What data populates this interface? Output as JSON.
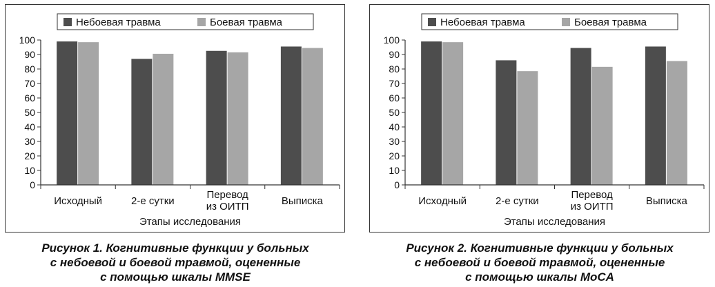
{
  "chart_data": [
    {
      "type": "bar",
      "categories": [
        [
          "Исходный"
        ],
        [
          "2-е сутки"
        ],
        [
          "Перевод",
          "из ОИТП"
        ],
        [
          "Выписка"
        ]
      ],
      "series": [
        {
          "name": "Небоевая травма",
          "values": [
            99,
            87,
            92.5,
            95.5
          ],
          "color": "#4d4d4d"
        },
        {
          "name": "Боевая травма",
          "values": [
            98.5,
            90.5,
            91.5,
            94.5
          ],
          "color": "#a6a6a6"
        }
      ],
      "xlabel": "Этапы исследования",
      "ylabel": "",
      "ylim": [
        0,
        100
      ],
      "yticks": [
        0,
        10,
        20,
        30,
        40,
        50,
        60,
        70,
        80,
        90,
        100
      ],
      "legend": "top",
      "grid": false,
      "caption": [
        "Рисунок 1. Когнитивные функции у больных",
        "с небоевой и боевой травмой, оцененные",
        "с помощью шкалы MMSE"
      ]
    },
    {
      "type": "bar",
      "categories": [
        [
          "Исходный"
        ],
        [
          "2-е сутки"
        ],
        [
          "Перевод",
          "из ОИТП"
        ],
        [
          "Выписка"
        ]
      ],
      "series": [
        {
          "name": "Небоевая травма",
          "values": [
            99,
            86,
            94.5,
            95.5
          ],
          "color": "#4d4d4d"
        },
        {
          "name": "Боевая травма",
          "values": [
            98.5,
            78.5,
            81.5,
            85.5
          ],
          "color": "#a6a6a6"
        }
      ],
      "xlabel": "Этапы исследования",
      "ylabel": "",
      "ylim": [
        0,
        100
      ],
      "yticks": [
        0,
        10,
        20,
        30,
        40,
        50,
        60,
        70,
        80,
        90,
        100
      ],
      "legend": "top",
      "grid": false,
      "caption": [
        "Рисунок 2. Когнитивные функции у больных",
        "с небоевой и боевой травмой, оцененные",
        "с помощью шкалы MoCA"
      ]
    }
  ]
}
